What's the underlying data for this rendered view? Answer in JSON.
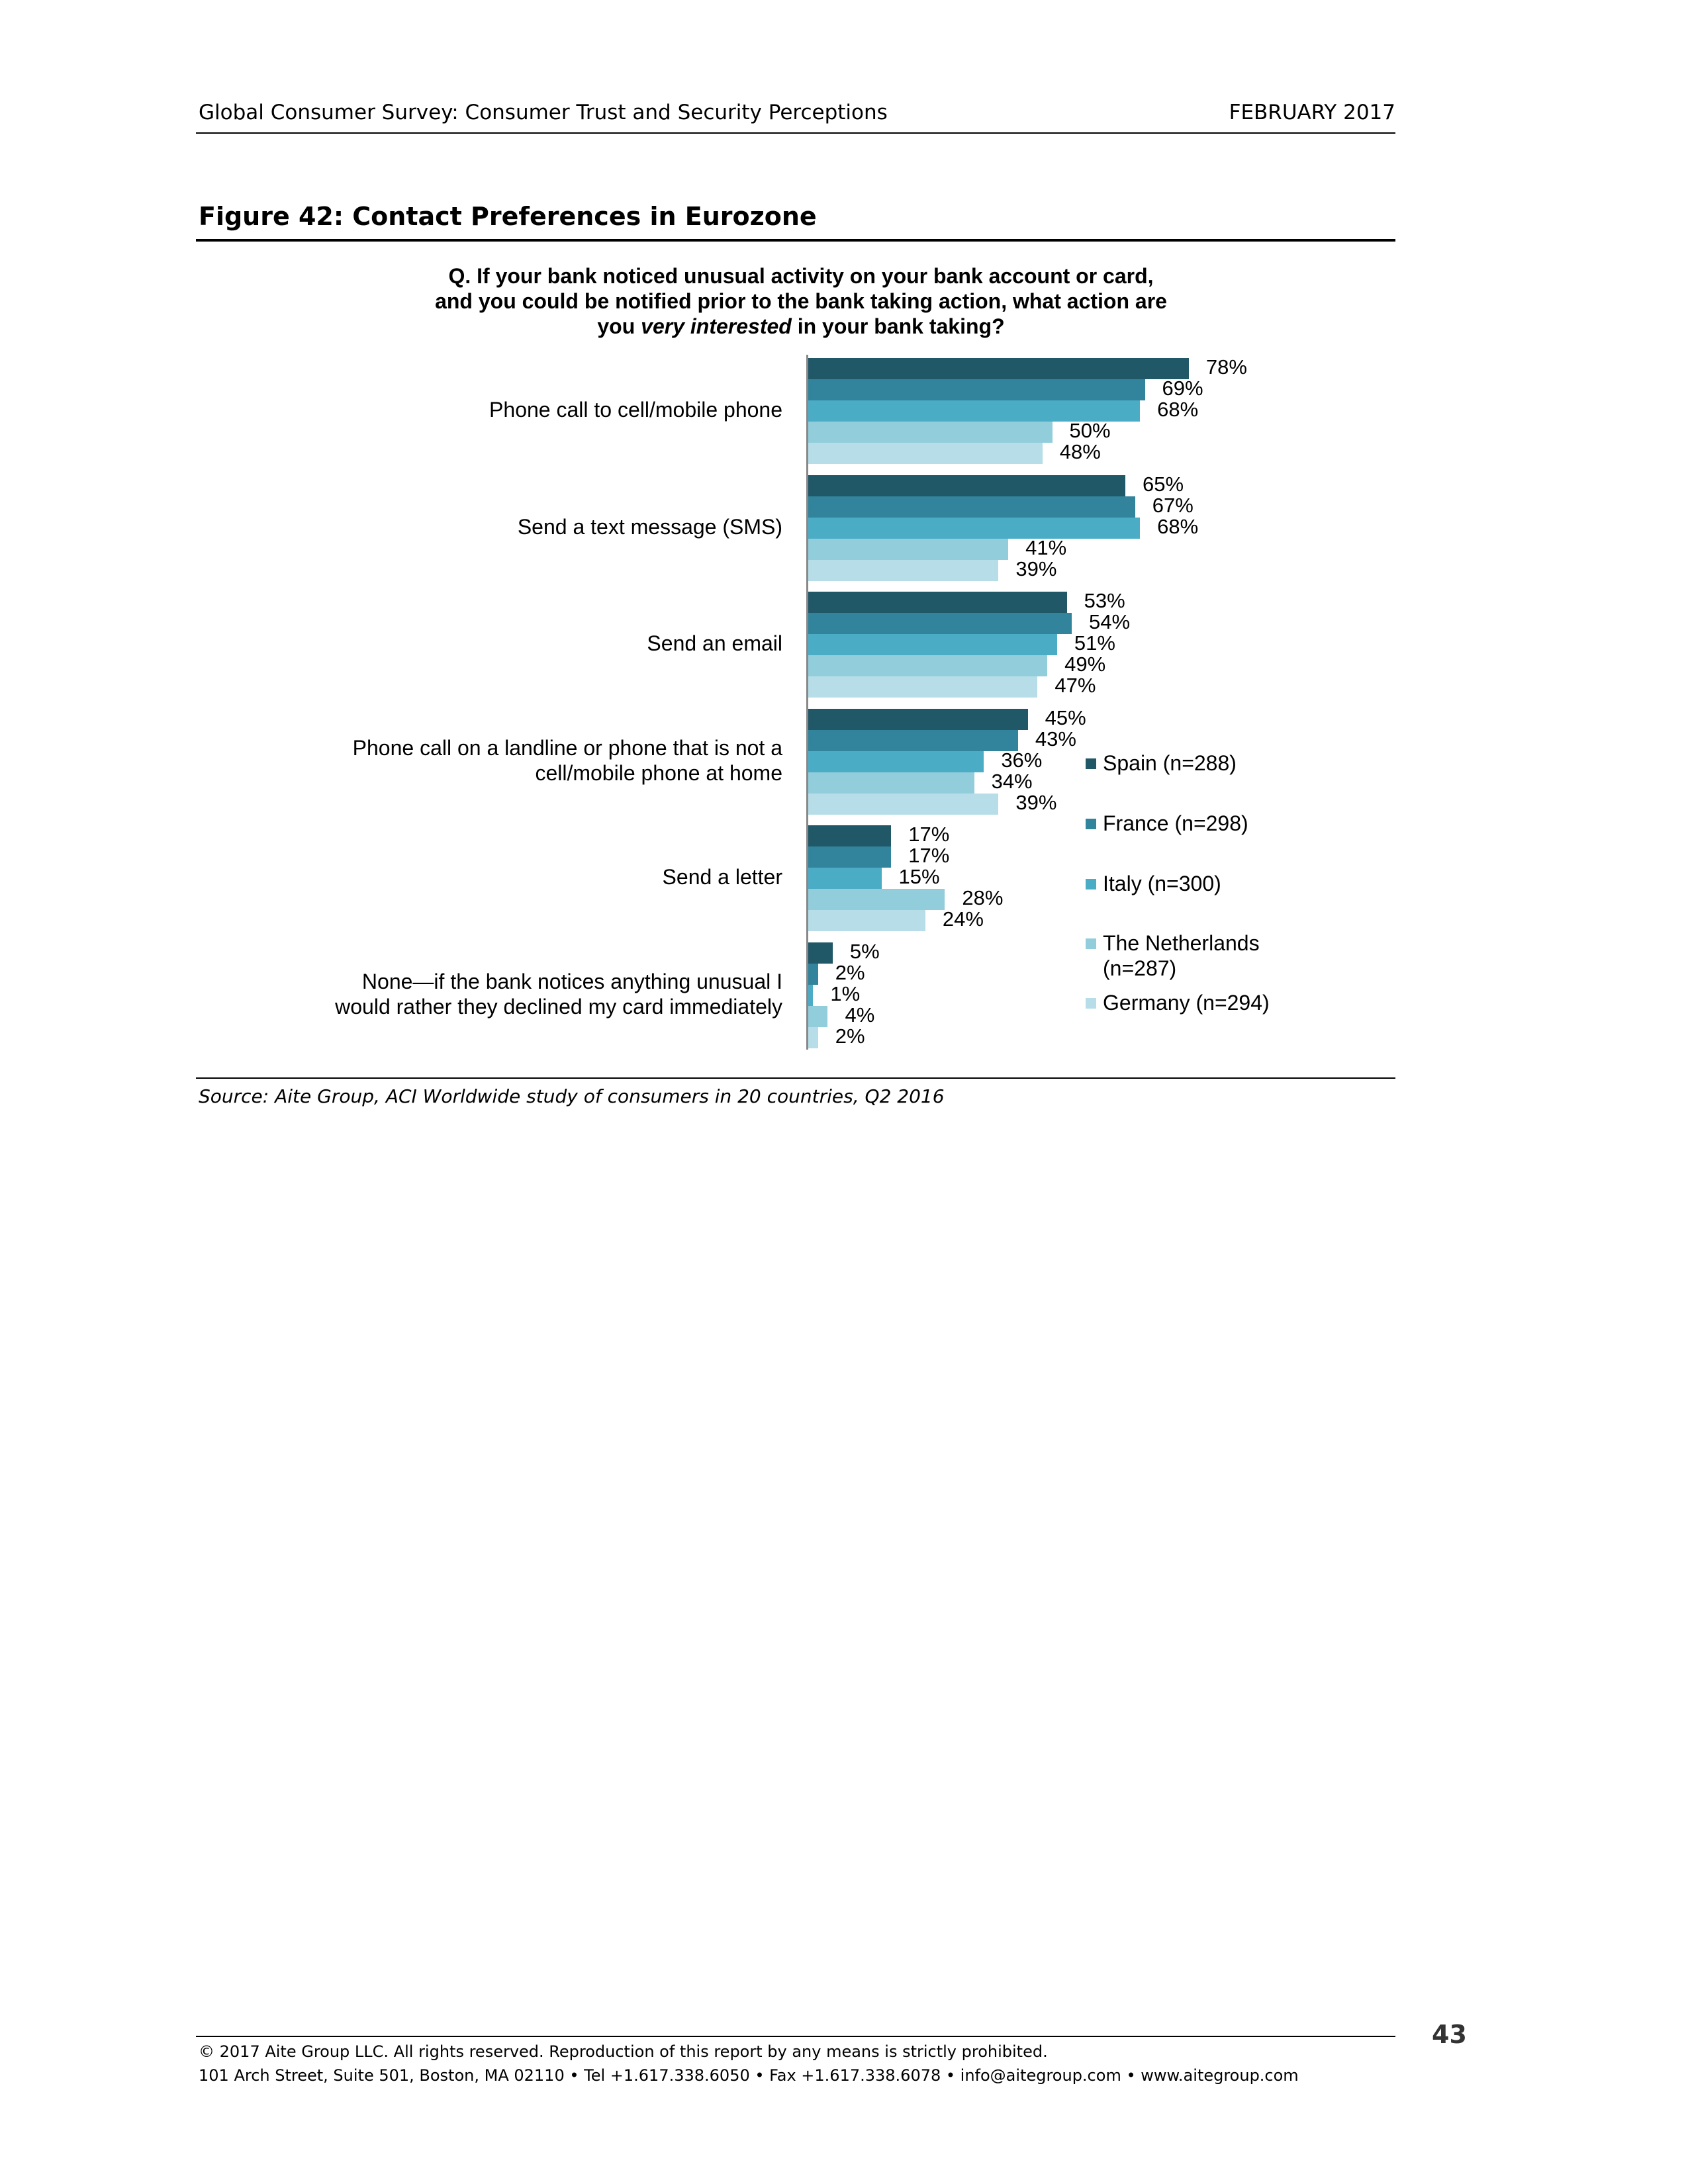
{
  "header": {
    "title": "Global Consumer Survey: Consumer Trust and Security Perceptions",
    "date": "FEBRUARY 2017"
  },
  "figure": {
    "title": "Figure 42: Contact Preferences in Eurozone",
    "question_lines": [
      "Q. If your bank noticed unusual activity on your bank account or card,",
      "and you could be notified prior to the bank taking action, what action are"
    ],
    "question_last_pre": "you ",
    "question_last_em": "very interested",
    "question_last_post": " in your bank taking?",
    "source": "Source: Aite Group, ACI Worldwide study of consumers in 20 countries, Q2 2016"
  },
  "chart_data": {
    "type": "bar",
    "orientation": "horizontal",
    "categories": [
      [
        "Phone call to cell/mobile phone"
      ],
      [
        "Send a text message (SMS)"
      ],
      [
        "Send an email"
      ],
      [
        "Phone call on a landline or phone that is not a",
        "cell/mobile phone at home"
      ],
      [
        "Send a letter"
      ],
      [
        "None—if the bank notices anything unusual I",
        "would rather they declined my card immediately"
      ]
    ],
    "series": [
      {
        "name": [
          "Spain (n=288)"
        ],
        "color": "#215868",
        "values": [
          78,
          65,
          53,
          45,
          17,
          5
        ]
      },
      {
        "name": [
          "France (n=298)"
        ],
        "color": "#31849B",
        "values": [
          69,
          67,
          54,
          43,
          17,
          2
        ]
      },
      {
        "name": [
          "Italy (n=300)"
        ],
        "color": "#4BACC6",
        "values": [
          68,
          68,
          51,
          36,
          15,
          1
        ]
      },
      {
        "name": [
          "The Netherlands",
          "(n=287)"
        ],
        "color": "#92CDDC",
        "values": [
          50,
          41,
          49,
          34,
          28,
          4
        ]
      },
      {
        "name": [
          "Germany (n=294)"
        ],
        "color": "#B7DEE8",
        "values": [
          48,
          39,
          47,
          39,
          24,
          2
        ]
      }
    ],
    "value_suffix": "%",
    "legend": "right",
    "grid": false
  },
  "footer": {
    "copyright": "© 2017 Aite Group LLC. All rights reserved. Reproduction of this report by any means is strictly prohibited.",
    "address": "101 Arch Street, Suite 501, Boston, MA 02110 • Tel +1.617.338.6050 • Fax +1.617.338.6078 • info@aitegroup.com • www.aitegroup.com",
    "page_number": "43"
  }
}
